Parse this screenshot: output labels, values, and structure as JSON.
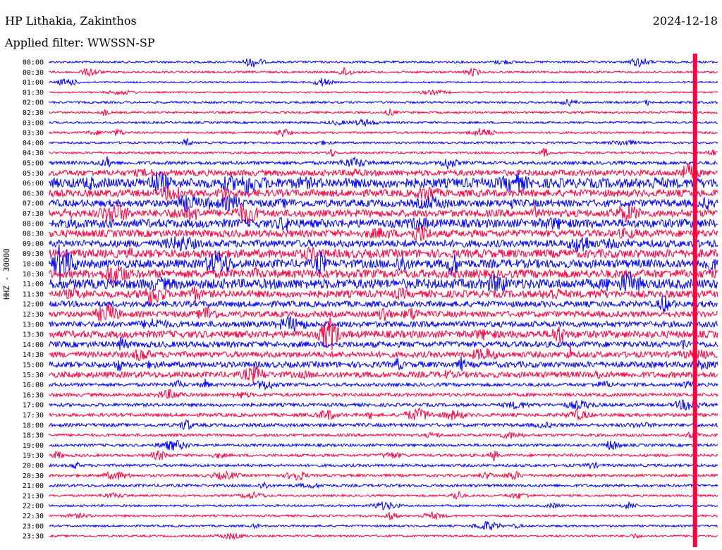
{
  "header": {
    "station": "HP Lithakia, Zakinthos",
    "date": "2024-12-18",
    "filter": "Applied filter: WWSSN-SP"
  },
  "channel_label": "HHZ - 30000",
  "colors": {
    "odd": "#0000ff",
    "even": "#ff0040",
    "background": "#ffffff"
  },
  "chart_data": {
    "type": "line",
    "title": "",
    "xlabel": "",
    "ylabel": "HHZ - 30000",
    "rows": [
      "00:00",
      "00:30",
      "01:00",
      "01:30",
      "02:00",
      "02:30",
      "03:00",
      "03:30",
      "04:00",
      "04:30",
      "05:00",
      "05:30",
      "06:00",
      "06:30",
      "07:00",
      "07:30",
      "08:00",
      "08:30",
      "09:00",
      "09:30",
      "10:00",
      "10:30",
      "11:00",
      "11:30",
      "12:00",
      "12:30",
      "13:00",
      "13:30",
      "14:00",
      "14:30",
      "15:00",
      "15:30",
      "16:00",
      "16:30",
      "17:00",
      "17:30",
      "18:00",
      "18:30",
      "19:00",
      "19:30",
      "20:00",
      "20:30",
      "21:00",
      "21:30",
      "22:00",
      "22:30",
      "23:00",
      "23:30"
    ],
    "noise_level": [
      1,
      1,
      0.6,
      0.6,
      1,
      1,
      1,
      1,
      1,
      1,
      2,
      4,
      7,
      5,
      5,
      5,
      6,
      5,
      5,
      6,
      6,
      6,
      7,
      5,
      4,
      4,
      4,
      5,
      4,
      4,
      4,
      4,
      2,
      2,
      2,
      2,
      2,
      1.5,
      1.5,
      1.5,
      1.5,
      1.5,
      1.5,
      1,
      1,
      1,
      1,
      1
    ],
    "large_event_column": 0.965
  }
}
